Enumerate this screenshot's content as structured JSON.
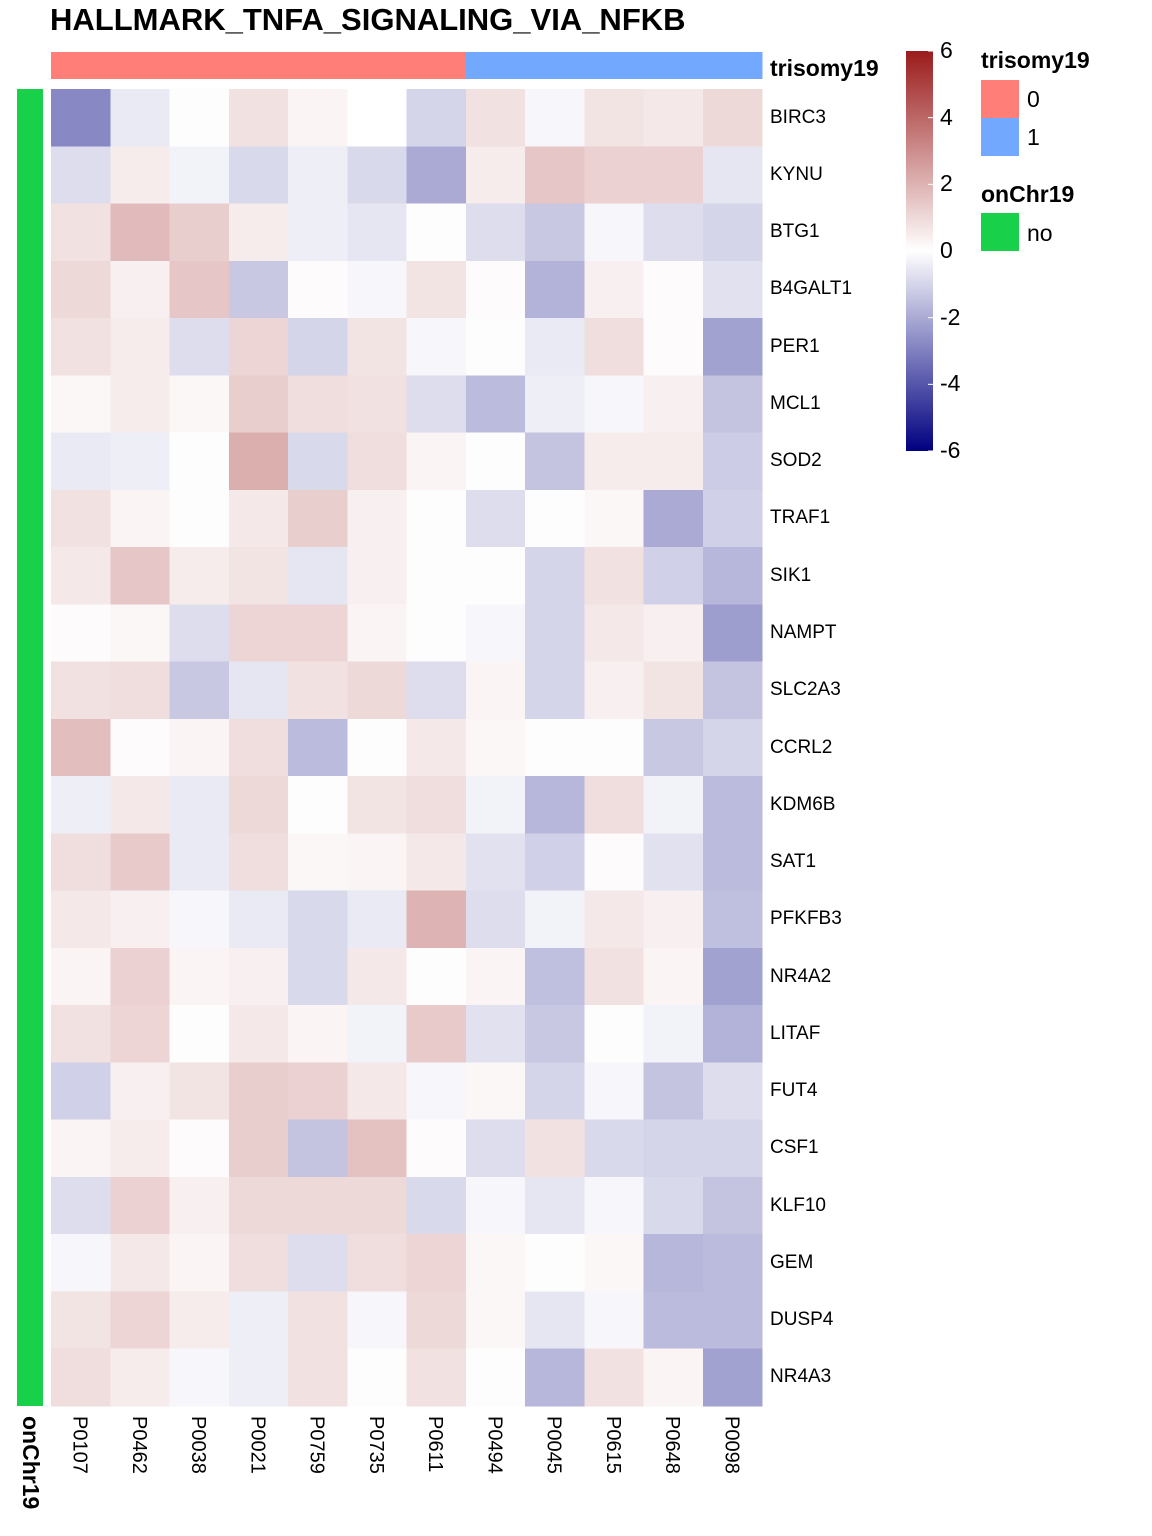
{
  "chart_data": {
    "type": "heatmap",
    "title": "HALLMARK_TNFA_SIGNALING_VIA_NFKB",
    "columns": [
      "P0107",
      "P0462",
      "P0038",
      "P0021",
      "P0759",
      "P0735",
      "P0611",
      "P0494",
      "P0045",
      "P0615",
      "P0648",
      "P0098"
    ],
    "rows": [
      "BIRC3",
      "KYNU",
      "BTG1",
      "B4GALT1",
      "PER1",
      "MCL1",
      "SOD2",
      "TRAF1",
      "SIK1",
      "NAMPT",
      "SLC2A3",
      "CCRL2",
      "KDM6B",
      "SAT1",
      "PFKFB3",
      "NR4A2",
      "LITAF",
      "FUT4",
      "CSF1",
      "KLF10",
      "GEM",
      "DUSP4",
      "NR4A3"
    ],
    "values": [
      [
        -2.8,
        -0.5,
        0.05,
        0.8,
        0.3,
        0.0,
        -1.0,
        0.8,
        -0.2,
        0.7,
        0.6,
        1.0
      ],
      [
        -0.8,
        0.5,
        -0.3,
        -0.9,
        -0.4,
        -0.9,
        -2.0,
        0.5,
        1.5,
        1.2,
        1.2,
        -0.6
      ],
      [
        0.8,
        1.8,
        1.3,
        0.5,
        -0.4,
        -0.6,
        0.05,
        -0.8,
        -1.3,
        -0.2,
        -0.8,
        -1.0
      ],
      [
        1.0,
        0.4,
        1.5,
        -1.3,
        0.1,
        -0.2,
        0.7,
        0.1,
        -1.8,
        0.4,
        0.1,
        -0.7
      ],
      [
        0.8,
        0.5,
        -0.8,
        1.1,
        -1.0,
        0.7,
        -0.2,
        0.05,
        -0.5,
        0.9,
        0.1,
        -2.2
      ],
      [
        0.2,
        0.5,
        0.2,
        1.3,
        0.9,
        0.8,
        -0.8,
        -1.6,
        -0.4,
        -0.2,
        0.4,
        -1.4
      ],
      [
        -0.5,
        -0.4,
        0.05,
        2.1,
        -0.9,
        0.9,
        0.3,
        0.05,
        -1.4,
        0.5,
        0.5,
        -1.2
      ],
      [
        0.8,
        0.3,
        0.05,
        0.6,
        1.3,
        0.4,
        0.05,
        -0.8,
        -0.05,
        0.2,
        -2.0,
        -1.1
      ],
      [
        0.6,
        1.5,
        0.5,
        0.7,
        -0.6,
        0.4,
        0.05,
        0.05,
        -1.0,
        0.8,
        -1.1,
        -1.7
      ],
      [
        0.1,
        0.2,
        -0.8,
        1.1,
        1.1,
        0.3,
        0.05,
        -0.2,
        -1.0,
        0.6,
        0.4,
        -2.3
      ],
      [
        0.8,
        0.9,
        -1.3,
        -0.6,
        0.8,
        1.0,
        -0.8,
        0.3,
        -1.0,
        0.4,
        0.7,
        -1.4
      ],
      [
        1.7,
        0.1,
        0.3,
        0.9,
        -1.6,
        0.05,
        0.6,
        0.2,
        0.05,
        0.05,
        -1.3,
        -1.0
      ],
      [
        -0.4,
        0.6,
        -0.5,
        1.0,
        0.05,
        0.7,
        0.9,
        -0.3,
        -1.7,
        0.9,
        -0.3,
        -1.6
      ],
      [
        0.9,
        1.4,
        -0.5,
        0.9,
        0.2,
        0.3,
        0.6,
        -0.7,
        -1.1,
        0.1,
        -0.7,
        -1.6
      ],
      [
        0.6,
        0.4,
        -0.2,
        -0.5,
        -0.9,
        -0.5,
        2.0,
        -0.8,
        -0.3,
        0.6,
        0.4,
        -1.5
      ],
      [
        0.3,
        1.2,
        0.3,
        0.4,
        -0.9,
        0.6,
        0.05,
        0.3,
        -1.5,
        0.8,
        0.3,
        -2.2
      ],
      [
        0.8,
        1.1,
        0.05,
        0.6,
        0.3,
        -0.3,
        1.4,
        -0.7,
        -1.3,
        0.05,
        -0.3,
        -1.8
      ],
      [
        -1.1,
        0.4,
        0.7,
        1.3,
        1.2,
        0.6,
        -0.2,
        0.2,
        -1.0,
        -0.2,
        -1.4,
        -0.8
      ],
      [
        0.3,
        0.5,
        0.1,
        1.3,
        -1.4,
        1.6,
        0.1,
        -0.8,
        0.8,
        -0.9,
        -1.0,
        -1.0
      ],
      [
        -0.8,
        1.2,
        0.4,
        1.0,
        1.0,
        1.0,
        -0.9,
        -0.2,
        -0.6,
        -0.2,
        -0.9,
        -1.4
      ],
      [
        -0.2,
        0.6,
        0.3,
        0.9,
        -0.8,
        0.9,
        1.1,
        0.2,
        0.05,
        0.2,
        -1.7,
        -1.6
      ],
      [
        0.7,
        1.1,
        0.5,
        -0.4,
        0.8,
        -0.2,
        1.0,
        0.2,
        -0.6,
        -0.2,
        -1.6,
        -1.6
      ],
      [
        0.9,
        0.5,
        -0.2,
        -0.4,
        0.8,
        0.05,
        0.8,
        0.05,
        -1.7,
        0.8,
        0.3,
        -2.2
      ]
    ],
    "scale": {
      "min": -6,
      "max": 6,
      "ticks": [
        6,
        4,
        2,
        0,
        -2,
        -4,
        -6
      ],
      "colors": [
        "#000080",
        "#ffffff",
        "#9b1b1b"
      ]
    },
    "column_annotation": {
      "name": "trisomy19",
      "values": [
        "0",
        "0",
        "0",
        "0",
        "0",
        "0",
        "0",
        "1",
        "1",
        "1",
        "1",
        "1"
      ],
      "levels": [
        {
          "label": "0",
          "color": "#ff7f78"
        },
        {
          "label": "1",
          "color": "#73a8ff"
        }
      ]
    },
    "row_annotation": {
      "name": "onChr19",
      "levels": [
        {
          "label": "no",
          "color": "#19d04a"
        }
      ]
    }
  }
}
